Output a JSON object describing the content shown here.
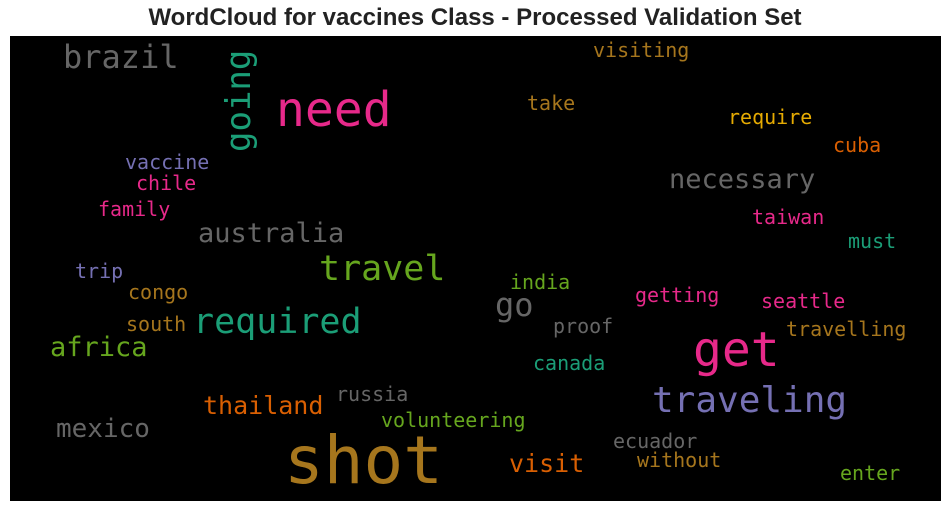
{
  "title": "WordCloud for vaccines Class - Processed Validation Set",
  "background": "#000000",
  "words": [
    {
      "text": "shot",
      "color": "#a6761d"
    },
    {
      "text": "need",
      "color": "#e7298a"
    },
    {
      "text": "get",
      "color": "#e7298a"
    },
    {
      "text": "traveling",
      "color": "#7570b3"
    },
    {
      "text": "required",
      "color": "#1b9e77"
    },
    {
      "text": "travel",
      "color": "#66a61e"
    },
    {
      "text": "going",
      "color": "#1b9e77"
    },
    {
      "text": "brazil",
      "color": "#666666"
    },
    {
      "text": "necessary",
      "color": "#666666"
    },
    {
      "text": "australia",
      "color": "#666666"
    },
    {
      "text": "go",
      "color": "#666666"
    },
    {
      "text": "africa",
      "color": "#66a61e"
    },
    {
      "text": "thailand",
      "color": "#d95f02"
    },
    {
      "text": "mexico",
      "color": "#666666"
    },
    {
      "text": "visit",
      "color": "#d95f02"
    },
    {
      "text": "volunteering",
      "color": "#66a61e"
    },
    {
      "text": "russia",
      "color": "#666666"
    },
    {
      "text": "visiting",
      "color": "#a6761d"
    },
    {
      "text": "take",
      "color": "#a6761d"
    },
    {
      "text": "require",
      "color": "#e6ab02"
    },
    {
      "text": "cuba",
      "color": "#d95f02"
    },
    {
      "text": "vaccine",
      "color": "#7570b3"
    },
    {
      "text": "chile",
      "color": "#e7298a"
    },
    {
      "text": "family",
      "color": "#e7298a"
    },
    {
      "text": "taiwan",
      "color": "#e7298a"
    },
    {
      "text": "must",
      "color": "#1b9e77"
    },
    {
      "text": "trip",
      "color": "#7570b3"
    },
    {
      "text": "india",
      "color": "#66a61e"
    },
    {
      "text": "congo",
      "color": "#a6761d"
    },
    {
      "text": "getting",
      "color": "#e7298a"
    },
    {
      "text": "seattle",
      "color": "#e7298a"
    },
    {
      "text": "south",
      "color": "#a6761d"
    },
    {
      "text": "proof",
      "color": "#666666"
    },
    {
      "text": "travelling",
      "color": "#a6761d"
    },
    {
      "text": "canada",
      "color": "#1b9e77"
    },
    {
      "text": "ecuador",
      "color": "#666666"
    },
    {
      "text": "without",
      "color": "#a6761d"
    },
    {
      "text": "enter",
      "color": "#66a61e"
    }
  ]
}
